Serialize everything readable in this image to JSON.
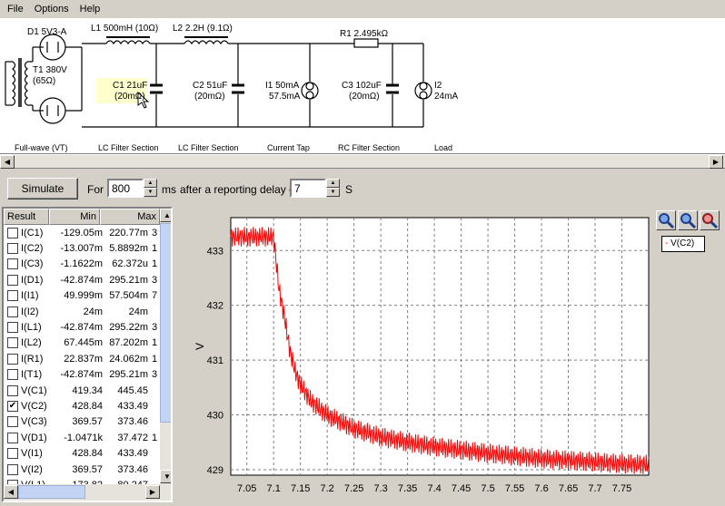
{
  "menu": [
    "File",
    "Options",
    "Help"
  ],
  "schematic": {
    "components": {
      "d1": "D1 5V3-A",
      "t1": "T1 380V",
      "t1_r": "(65Ω)",
      "l1": "L1 500mH (10Ω)",
      "l2": "L2 2.2H (9.1Ω)",
      "c1": "C1 21uF",
      "c1_r": "(20mΩ)",
      "c2": "C2 51uF",
      "c2_r": "(20mΩ)",
      "i1": "I1 50mA",
      "i1_b": "57.5mA",
      "r1": "R1 2.495kΩ",
      "c3": "C3 102uF",
      "c3_r": "(20mΩ)",
      "i2": "I2",
      "i2_b": "24mA"
    },
    "sections": [
      "Full-wave (VT)",
      "LC Filter Section",
      "LC Filter Section",
      "Current Tap",
      "RC Filter Section",
      "Load"
    ]
  },
  "sim": {
    "button": "Simulate",
    "for_label": "For",
    "duration": "800",
    "ms_label": "ms",
    "delay_label": "after a reporting delay of",
    "delay": "7",
    "s_label": "S"
  },
  "results": {
    "headers": [
      "Result",
      "Min",
      "Max"
    ],
    "rows": [
      {
        "name": "I(C1)",
        "min": "-129.05m",
        "max": "220.77m",
        "extra": "3",
        "checked": false
      },
      {
        "name": "I(C2)",
        "min": "-13.007m",
        "max": "5.8892m",
        "extra": "1",
        "checked": false
      },
      {
        "name": "I(C3)",
        "min": "-1.1622m",
        "max": "62.372u",
        "extra": "1",
        "checked": false
      },
      {
        "name": "I(D1)",
        "min": "-42.874m",
        "max": "295.21m",
        "extra": "3",
        "checked": false
      },
      {
        "name": "I(I1)",
        "min": "49.999m",
        "max": "57.504m",
        "extra": "7",
        "checked": false
      },
      {
        "name": "I(I2)",
        "min": "24m",
        "max": "24m",
        "extra": "",
        "checked": false
      },
      {
        "name": "I(L1)",
        "min": "-42.874m",
        "max": "295.22m",
        "extra": "3",
        "checked": false
      },
      {
        "name": "I(L2)",
        "min": "67.445m",
        "max": "87.202m",
        "extra": "1",
        "checked": false
      },
      {
        "name": "I(R1)",
        "min": "22.837m",
        "max": "24.062m",
        "extra": "1",
        "checked": false
      },
      {
        "name": "I(T1)",
        "min": "-42.874m",
        "max": "295.21m",
        "extra": "3",
        "checked": false
      },
      {
        "name": "V(C1)",
        "min": "419.34",
        "max": "445.45",
        "extra": "",
        "checked": false
      },
      {
        "name": "V(C2)",
        "min": "428.84",
        "max": "433.49",
        "extra": "",
        "checked": true
      },
      {
        "name": "V(C3)",
        "min": "369.57",
        "max": "373.46",
        "extra": "",
        "checked": false
      },
      {
        "name": "V(D1)",
        "min": "-1.0471k",
        "max": "37.472",
        "extra": "1",
        "checked": false
      },
      {
        "name": "V(I1)",
        "min": "428.84",
        "max": "433.49",
        "extra": "",
        "checked": false
      },
      {
        "name": "V(I2)",
        "min": "369.57",
        "max": "373.46",
        "extra": "",
        "checked": false
      },
      {
        "name": "V(L1)",
        "min": "-173.82",
        "max": "80.247",
        "extra": "",
        "checked": false
      }
    ]
  },
  "chart_data": {
    "type": "line",
    "ylabel": "V",
    "xlim": [
      7.02,
      7.8
    ],
    "ylim": [
      428.9,
      433.6
    ],
    "xticks": [
      "7.05",
      "7.1",
      "7.15",
      "7.2",
      "7.25",
      "7.3",
      "7.35",
      "7.4",
      "7.45",
      "7.5",
      "7.55",
      "7.6",
      "7.65",
      "7.7",
      "7.75"
    ],
    "yticks": [
      "429",
      "430",
      "431",
      "432",
      "433"
    ],
    "grid": true,
    "legend_position": "top-right",
    "series": [
      {
        "name": "V(C2)",
        "color": "#ff0000",
        "x": [
          7.02,
          7.05,
          7.08,
          7.1,
          7.11,
          7.12,
          7.13,
          7.14,
          7.15,
          7.17,
          7.2,
          7.25,
          7.3,
          7.35,
          7.4,
          7.45,
          7.5,
          7.55,
          7.6,
          7.65,
          7.7,
          7.75,
          7.8
        ],
        "y": [
          433.25,
          433.25,
          433.25,
          433.25,
          432.3,
          431.8,
          431.2,
          430.8,
          430.55,
          430.25,
          430.0,
          429.75,
          429.6,
          429.5,
          429.42,
          429.36,
          429.3,
          429.25,
          429.2,
          429.17,
          429.14,
          429.11,
          429.09
        ],
        "ripple": 0.18
      }
    ],
    "zoom_tools": [
      "zoom-in-icon",
      "zoom-in-alt-icon",
      "zoom-out-icon"
    ]
  }
}
